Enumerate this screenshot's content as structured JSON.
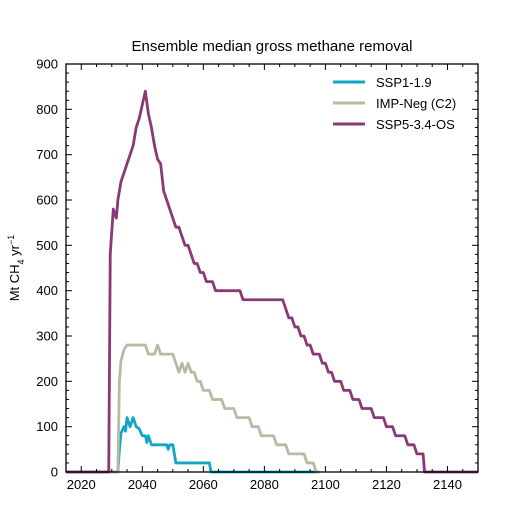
{
  "chart_data": {
    "type": "line",
    "title": "Ensemble median gross methane removal",
    "xlabel": "",
    "ylabel": {
      "main": "Mt CH",
      "sub": "4",
      "unit": " yr",
      "sup": "−1"
    },
    "xlim": [
      2015,
      2150
    ],
    "ylim": [
      0,
      900
    ],
    "xticks": [
      2020,
      2040,
      2060,
      2080,
      2100,
      2120,
      2140
    ],
    "yticks": [
      0,
      100,
      200,
      300,
      400,
      500,
      600,
      700,
      800,
      900
    ],
    "grid": false,
    "legend_position": "top-right",
    "series": [
      {
        "name": "SSP1-1.9",
        "color": "#11a6c6",
        "points": [
          [
            2015,
            0
          ],
          [
            2032,
            0
          ],
          [
            2032.5,
            50
          ],
          [
            2033,
            85
          ],
          [
            2034,
            100
          ],
          [
            2034.5,
            90
          ],
          [
            2035,
            120
          ],
          [
            2036,
            100
          ],
          [
            2037,
            120
          ],
          [
            2038,
            100
          ],
          [
            2039,
            95
          ],
          [
            2040,
            80
          ],
          [
            2041,
            80
          ],
          [
            2041.5,
            65
          ],
          [
            2042,
            80
          ],
          [
            2043,
            60
          ],
          [
            2048,
            60
          ],
          [
            2048.5,
            50
          ],
          [
            2049,
            60
          ],
          [
            2050,
            60
          ],
          [
            2050.5,
            40
          ],
          [
            2051,
            20
          ],
          [
            2062,
            20
          ],
          [
            2062.5,
            0
          ],
          [
            2098,
            0
          ]
        ]
      },
      {
        "name": "IMP-Neg (C2)",
        "color": "#b8bba4",
        "points": [
          [
            2015,
            0
          ],
          [
            2032,
            0
          ],
          [
            2032.5,
            200
          ],
          [
            2033,
            245
          ],
          [
            2034,
            270
          ],
          [
            2035,
            280
          ],
          [
            2041,
            280
          ],
          [
            2042,
            260
          ],
          [
            2044,
            260
          ],
          [
            2045,
            280
          ],
          [
            2046,
            260
          ],
          [
            2050,
            260
          ],
          [
            2051,
            240
          ],
          [
            2052,
            220
          ],
          [
            2053,
            240
          ],
          [
            2054,
            220
          ],
          [
            2055,
            240
          ],
          [
            2056,
            220
          ],
          [
            2057,
            220
          ],
          [
            2058,
            200
          ],
          [
            2059,
            200
          ],
          [
            2060,
            180
          ],
          [
            2062,
            180
          ],
          [
            2063,
            160
          ],
          [
            2066,
            160
          ],
          [
            2067,
            140
          ],
          [
            2070,
            140
          ],
          [
            2071,
            120
          ],
          [
            2075,
            120
          ],
          [
            2076,
            100
          ],
          [
            2078,
            100
          ],
          [
            2079,
            80
          ],
          [
            2083,
            80
          ],
          [
            2084,
            60
          ],
          [
            2087,
            60
          ],
          [
            2088,
            40
          ],
          [
            2093,
            40
          ],
          [
            2094,
            20
          ],
          [
            2096,
            20
          ],
          [
            2097,
            0
          ],
          [
            2098,
            0
          ]
        ]
      },
      {
        "name": "SSP5-3.4-OS",
        "color": "#8b3876",
        "points": [
          [
            2015,
            0
          ],
          [
            2029,
            0
          ],
          [
            2029.5,
            480
          ],
          [
            2030.5,
            580
          ],
          [
            2031.5,
            560
          ],
          [
            2032,
            600
          ],
          [
            2033,
            640
          ],
          [
            2034,
            660
          ],
          [
            2035,
            680
          ],
          [
            2036,
            700
          ],
          [
            2037,
            720
          ],
          [
            2038,
            760
          ],
          [
            2039,
            780
          ],
          [
            2040,
            810
          ],
          [
            2041,
            840
          ],
          [
            2042,
            790
          ],
          [
            2043,
            760
          ],
          [
            2044,
            720
          ],
          [
            2045,
            690
          ],
          [
            2046,
            680
          ],
          [
            2047,
            620
          ],
          [
            2048,
            600
          ],
          [
            2049,
            580
          ],
          [
            2050,
            560
          ],
          [
            2051,
            540
          ],
          [
            2052,
            540
          ],
          [
            2053,
            520
          ],
          [
            2054,
            500
          ],
          [
            2055,
            500
          ],
          [
            2056,
            480
          ],
          [
            2057,
            460
          ],
          [
            2058,
            460
          ],
          [
            2059,
            440
          ],
          [
            2060,
            440
          ],
          [
            2061,
            420
          ],
          [
            2063,
            420
          ],
          [
            2064,
            400
          ],
          [
            2072,
            400
          ],
          [
            2073,
            380
          ],
          [
            2086,
            380
          ],
          [
            2087,
            360
          ],
          [
            2088,
            340
          ],
          [
            2089,
            340
          ],
          [
            2090,
            320
          ],
          [
            2091,
            320
          ],
          [
            2092,
            300
          ],
          [
            2093,
            300
          ],
          [
            2094,
            280
          ],
          [
            2095,
            280
          ],
          [
            2096,
            260
          ],
          [
            2098,
            260
          ],
          [
            2099,
            240
          ],
          [
            2100,
            240
          ],
          [
            2101,
            220
          ],
          [
            2102,
            220
          ],
          [
            2103,
            200
          ],
          [
            2105,
            200
          ],
          [
            2106,
            180
          ],
          [
            2108,
            180
          ],
          [
            2109,
            160
          ],
          [
            2111,
            160
          ],
          [
            2112,
            140
          ],
          [
            2115,
            140
          ],
          [
            2116,
            120
          ],
          [
            2119,
            120
          ],
          [
            2120,
            100
          ],
          [
            2122,
            100
          ],
          [
            2123,
            80
          ],
          [
            2126,
            80
          ],
          [
            2127,
            60
          ],
          [
            2129,
            60
          ],
          [
            2130,
            40
          ],
          [
            2132,
            40
          ],
          [
            2132.5,
            0
          ],
          [
            2150,
            0
          ]
        ]
      }
    ]
  }
}
